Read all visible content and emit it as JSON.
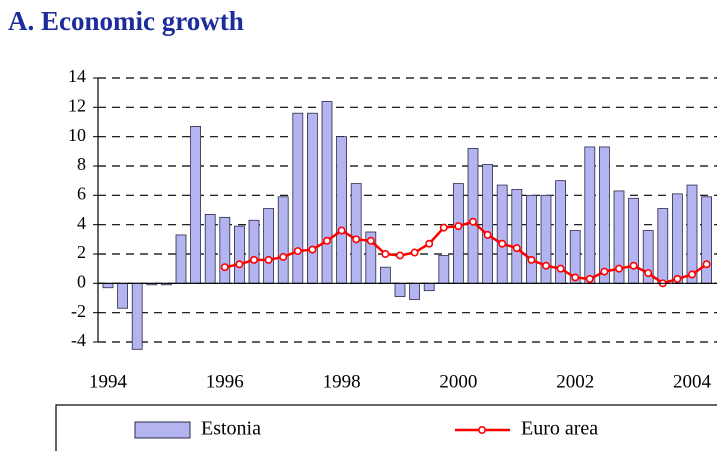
{
  "chart_data": {
    "type": "bar",
    "title": "A. Economic growth",
    "categories": [
      "1994",
      null,
      null,
      null,
      null,
      null,
      null,
      null,
      "1996",
      null,
      null,
      null,
      null,
      null,
      null,
      null,
      "1998",
      null,
      null,
      null,
      null,
      null,
      null,
      null,
      "2000",
      null,
      null,
      null,
      null,
      null,
      null,
      null,
      "2002",
      null,
      null,
      null,
      null,
      null,
      null,
      null,
      "2004",
      null
    ],
    "series": [
      {
        "name": "Estonia",
        "type": "bar",
        "color": "#b4b4f0",
        "values": [
          -0.3,
          -1.7,
          -4.5,
          -0.1,
          -0.1,
          3.3,
          10.7,
          4.7,
          4.5,
          3.9,
          4.3,
          5.1,
          5.9,
          11.6,
          11.6,
          12.4,
          10.0,
          6.8,
          3.5,
          1.1,
          -0.9,
          -1.1,
          -0.5,
          1.9,
          6.8,
          9.2,
          8.1,
          6.7,
          6.4,
          6.0,
          6.0,
          7.0,
          3.6,
          9.3,
          9.3,
          6.3,
          5.8,
          3.6,
          5.1,
          6.1,
          6.7,
          5.9
        ]
      },
      {
        "name": "Euro area",
        "type": "line",
        "color": "#ff0000",
        "values": [
          null,
          null,
          null,
          null,
          null,
          null,
          null,
          null,
          1.1,
          1.3,
          1.6,
          1.6,
          1.8,
          2.2,
          2.3,
          2.9,
          3.6,
          3.0,
          2.9,
          2.0,
          1.9,
          2.1,
          2.7,
          3.8,
          3.9,
          4.2,
          3.3,
          2.7,
          2.4,
          1.6,
          1.2,
          1.0,
          0.4,
          0.3,
          0.8,
          1.0,
          1.2,
          0.7,
          0.0,
          0.3,
          0.6,
          1.3
        ]
      }
    ],
    "ylim": [
      -4,
      14
    ],
    "yticks": [
      -4,
      -2,
      0,
      2,
      4,
      6,
      8,
      10,
      12,
      14
    ],
    "grid": true,
    "legend": "bottom"
  }
}
